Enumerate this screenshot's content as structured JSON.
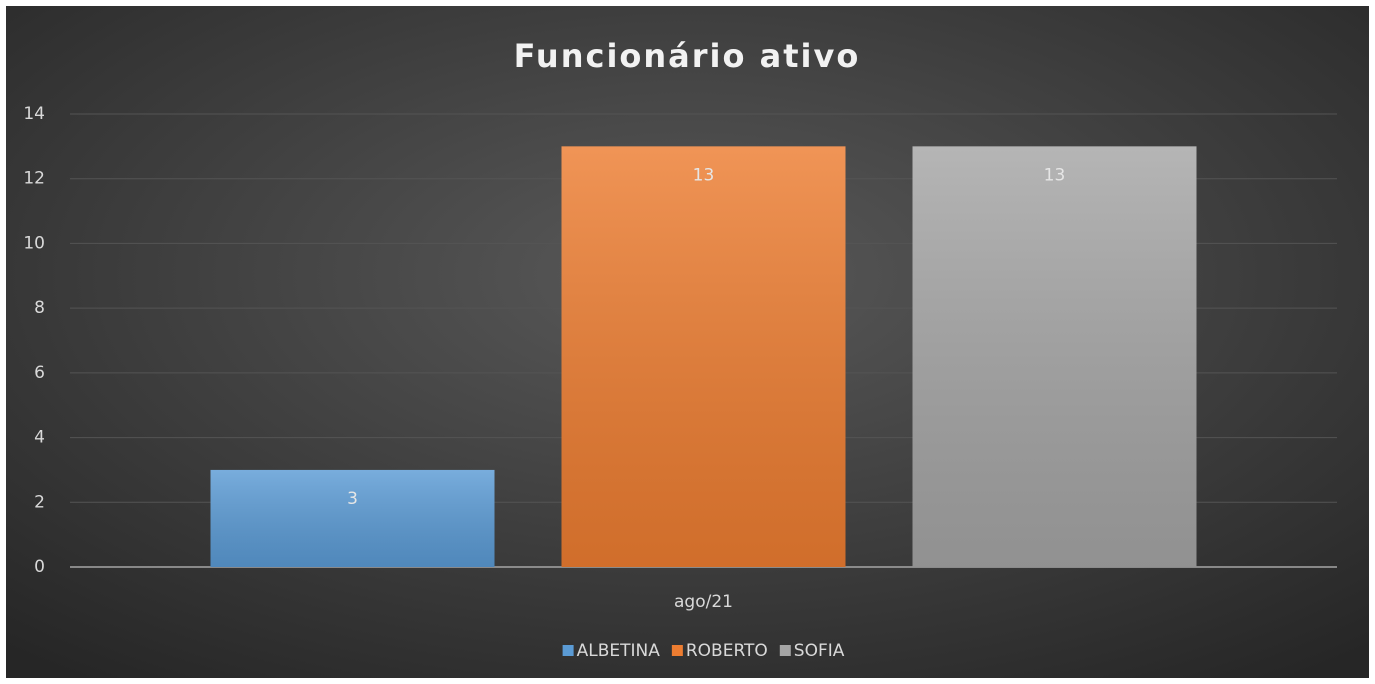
{
  "chart_data": {
    "type": "bar",
    "title": "Funcionário ativo",
    "categories": [
      "ago/21"
    ],
    "series": [
      {
        "name": "ALBETINA",
        "color": "#5b9bd5",
        "values": [
          3
        ]
      },
      {
        "name": "ROBERTO",
        "color": "#ed7d31",
        "values": [
          13
        ]
      },
      {
        "name": "SOFIA",
        "color": "#a5a5a5",
        "values": [
          13
        ]
      }
    ],
    "ylim": [
      0,
      14
    ],
    "yticks": [
      0,
      2,
      4,
      6,
      8,
      10,
      12,
      14
    ],
    "grid": true,
    "legend": "bottom"
  }
}
